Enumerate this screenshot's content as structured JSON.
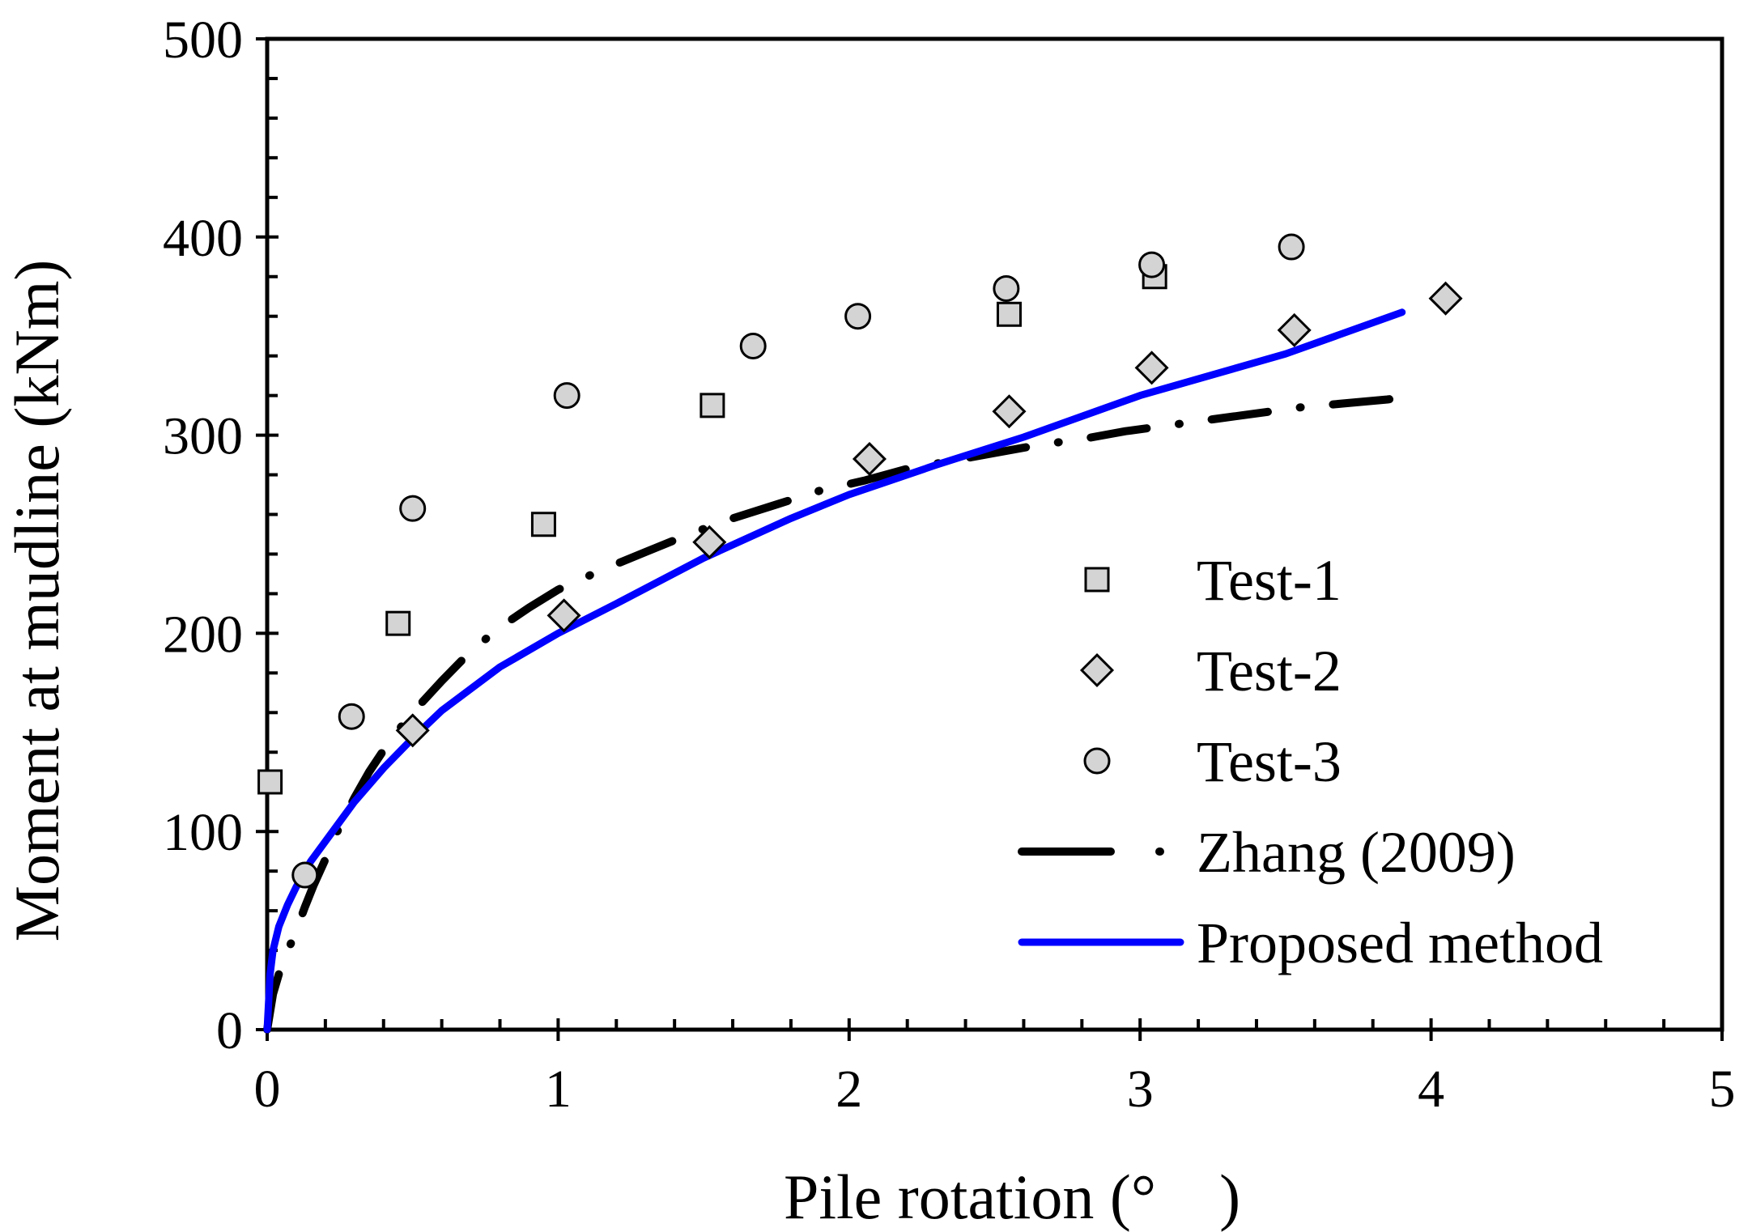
{
  "chart_data": {
    "type": "scatter",
    "title": "",
    "xlabel": "Pile rotation (° )",
    "ylabel": "Moment at mudline (kNm)",
    "xlim": [
      0,
      5
    ],
    "ylim": [
      0,
      500
    ],
    "xticks": [
      0,
      1,
      2,
      3,
      4,
      5
    ],
    "yticks": [
      0,
      100,
      200,
      300,
      400,
      500
    ],
    "xtick_labels": [
      "0",
      "1",
      "2",
      "3",
      "4",
      "5"
    ],
    "ytick_labels": [
      "0",
      "100",
      "200",
      "300",
      "400",
      "500"
    ],
    "x_minor_step": 0.2,
    "y_minor_step": 20,
    "grid": false,
    "legend_position": "bottom-right",
    "series": [
      {
        "name": "Test-1",
        "kind": "markers",
        "marker": "square",
        "color": "#d4d4d4",
        "x": [
          0.01,
          0.45,
          0.95,
          1.53,
          2.55,
          3.05
        ],
        "y": [
          125,
          205,
          255,
          315,
          361,
          380
        ]
      },
      {
        "name": "Test-2",
        "kind": "markers",
        "marker": "diamond",
        "color": "#d4d4d4",
        "x": [
          0.5,
          1.02,
          1.52,
          2.07,
          2.55,
          3.04,
          3.53,
          4.05
        ],
        "y": [
          151,
          209,
          246,
          288,
          312,
          334,
          353,
          369
        ]
      },
      {
        "name": "Test-3",
        "kind": "markers",
        "marker": "circle",
        "color": "#d4d4d4",
        "x": [
          0.13,
          0.29,
          0.5,
          1.03,
          1.67,
          2.03,
          2.54,
          3.04,
          3.52
        ],
        "y": [
          78,
          158,
          263,
          320,
          345,
          360,
          374,
          386,
          395
        ]
      },
      {
        "name": "Zhang (2009)",
        "kind": "line",
        "style": "dash-dot",
        "color": "#000000",
        "x": [
          0.0,
          0.02,
          0.04,
          0.06,
          0.08,
          0.1,
          0.13,
          0.16,
          0.2,
          0.25,
          0.3,
          0.35,
          0.4,
          0.45,
          0.5,
          0.6,
          0.7,
          0.8,
          0.9,
          1.0,
          1.15,
          1.3,
          1.45,
          1.6,
          1.75,
          1.9,
          2.05,
          2.2,
          2.35,
          2.5,
          2.65,
          2.8,
          2.95,
          3.1,
          3.25,
          3.4,
          3.55,
          3.7,
          3.85,
          3.95
        ],
        "y": [
          0,
          18,
          28,
          36,
          43,
          50,
          62,
          73,
          86,
          103,
          117,
          130,
          141,
          151,
          160,
          176,
          191,
          203,
          213,
          222,
          232,
          241,
          250,
          258,
          265,
          272,
          277,
          283,
          287,
          291,
          295,
          298,
          302,
          305,
          308,
          311,
          314,
          316,
          318,
          320
        ]
      },
      {
        "name": "Proposed method",
        "kind": "line",
        "style": "solid",
        "color": "#0000ff",
        "x": [
          0.0,
          0.01,
          0.02,
          0.04,
          0.07,
          0.1,
          0.15,
          0.2,
          0.3,
          0.4,
          0.5,
          0.6,
          0.8,
          1.0,
          1.2,
          1.5,
          1.8,
          2.0,
          2.3,
          2.6,
          3.0,
          3.5,
          3.9
        ],
        "y": [
          0,
          28,
          40,
          52,
          63,
          72,
          85,
          95,
          115,
          132,
          147,
          161,
          183,
          200,
          215,
          238,
          258,
          270,
          285,
          299,
          320,
          341,
          362
        ]
      }
    ]
  }
}
